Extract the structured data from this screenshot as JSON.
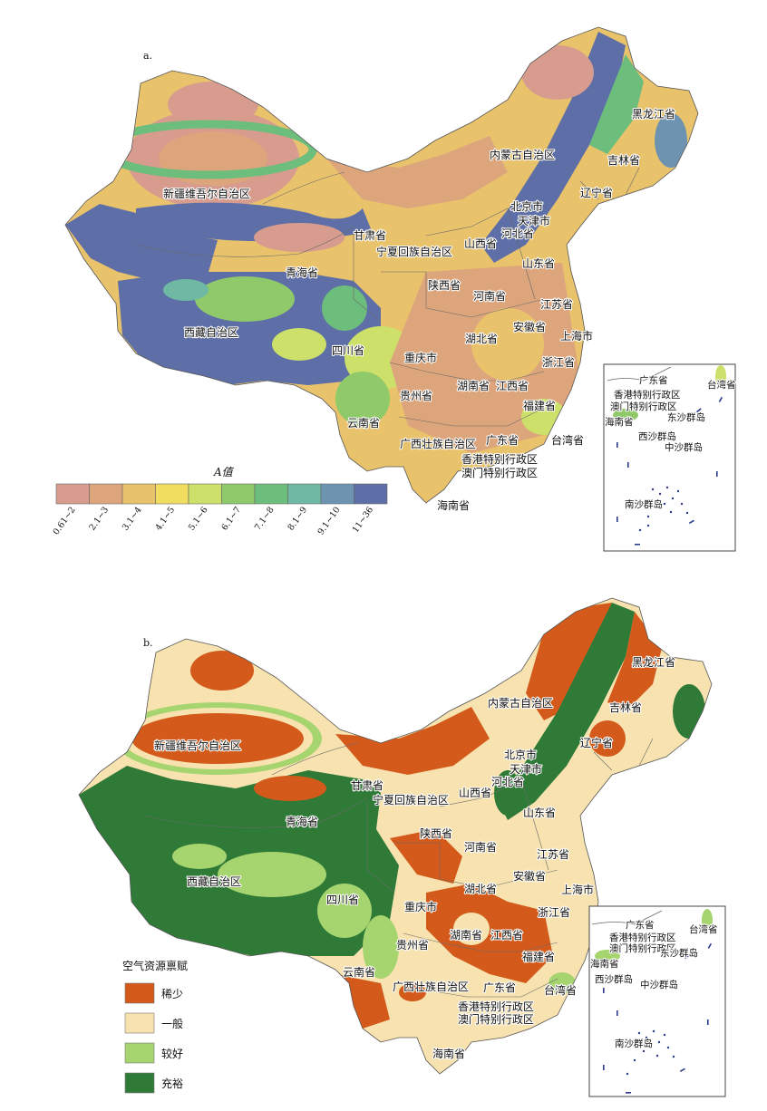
{
  "panel_a": {
    "letter": "a.",
    "legend_title": "A值",
    "colors": [
      "#d89c8f",
      "#dda57c",
      "#e9c26c",
      "#f1dd60",
      "#cde06a",
      "#8fc96a",
      "#6dbd7c",
      "#6fb9a4",
      "#6d93b0",
      "#5d6fa6"
    ],
    "ranges": [
      "0.61~2",
      "2.1~3",
      "3.1~4",
      "4.1~5",
      "5.1~6",
      "6.1~7",
      "7.1~8",
      "8.1~9",
      "9.1~10",
      "11~36"
    ],
    "regions": [
      {
        "name": "黑龙江省"
      },
      {
        "name": "吉林省"
      },
      {
        "name": "辽宁省"
      },
      {
        "name": "内蒙古自治区"
      },
      {
        "name": "新疆维吾尔自治区"
      },
      {
        "name": "北京市"
      },
      {
        "name": "天津市"
      },
      {
        "name": "河北省"
      },
      {
        "name": "甘肃省"
      },
      {
        "name": "宁夏回族自治区"
      },
      {
        "name": "山西省"
      },
      {
        "name": "青海省"
      },
      {
        "name": "山东省"
      },
      {
        "name": "陕西省"
      },
      {
        "name": "河南省"
      },
      {
        "name": "江苏省"
      },
      {
        "name": "西藏自治区"
      },
      {
        "name": "安徽省"
      },
      {
        "name": "上海市"
      },
      {
        "name": "四川省"
      },
      {
        "name": "湖北省"
      },
      {
        "name": "重庆市"
      },
      {
        "name": "浙江省"
      },
      {
        "name": "贵州省"
      },
      {
        "name": "湖南省"
      },
      {
        "name": "江西省"
      },
      {
        "name": "福建省"
      },
      {
        "name": "云南省"
      },
      {
        "name": "台湾省"
      },
      {
        "name": "广西壮族自治区"
      },
      {
        "name": "广东省"
      },
      {
        "name": "香港特别行政区"
      },
      {
        "name": "澳门特别行政区"
      },
      {
        "name": "海南省"
      }
    ],
    "inset": [
      "广东省",
      "台湾省",
      "香港特别行政区",
      "澳门特别行政区",
      "海南省",
      "东沙群岛",
      "西沙群岛",
      "中沙群岛",
      "南沙群岛"
    ]
  },
  "panel_b": {
    "letter": "b.",
    "legend_title": "空气资源禀赋",
    "classes": [
      {
        "label": "稀少",
        "color": "#d35a1a"
      },
      {
        "label": "一般",
        "color": "#f8e3b0"
      },
      {
        "label": "较好",
        "color": "#a6d46f"
      },
      {
        "label": "充裕",
        "color": "#2f7a37"
      }
    ],
    "regions": [
      {
        "name": "黑龙江省"
      },
      {
        "name": "吉林省"
      },
      {
        "name": "辽宁省"
      },
      {
        "name": "内蒙古自治区"
      },
      {
        "name": "新疆维吾尔自治区"
      },
      {
        "name": "北京市"
      },
      {
        "name": "天津市"
      },
      {
        "name": "河北省"
      },
      {
        "name": "甘肃省"
      },
      {
        "name": "宁夏回族自治区"
      },
      {
        "name": "山西省"
      },
      {
        "name": "青海省"
      },
      {
        "name": "山东省"
      },
      {
        "name": "陕西省"
      },
      {
        "name": "河南省"
      },
      {
        "name": "江苏省"
      },
      {
        "name": "西藏自治区"
      },
      {
        "name": "安徽省"
      },
      {
        "name": "上海市"
      },
      {
        "name": "四川省"
      },
      {
        "name": "湖北省"
      },
      {
        "name": "重庆市"
      },
      {
        "name": "浙江省"
      },
      {
        "name": "贵州省"
      },
      {
        "name": "湖南省"
      },
      {
        "name": "江西省"
      },
      {
        "name": "福建省"
      },
      {
        "name": "云南省"
      },
      {
        "name": "台湾省"
      },
      {
        "name": "广西壮族自治区"
      },
      {
        "name": "广东省"
      },
      {
        "name": "香港特别行政区"
      },
      {
        "name": "澳门特别行政区"
      },
      {
        "name": "海南省"
      }
    ],
    "inset": [
      "广东省",
      "台湾省",
      "香港特别行政区",
      "澳门特别行政区",
      "海南省",
      "东沙群岛",
      "西沙群岛",
      "中沙群岛",
      "南沙群岛"
    ]
  }
}
